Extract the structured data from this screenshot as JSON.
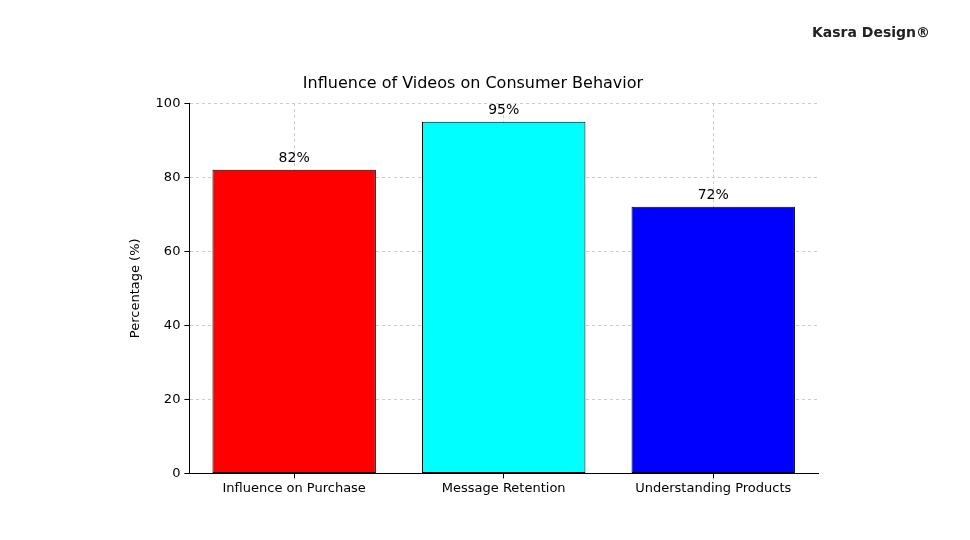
{
  "chart_data": {
    "type": "bar",
    "title": "Influence of Videos on Consumer Behavior",
    "y_label": "Percentage (%)",
    "categories": [
      "Influence on Purchase",
      "Message Retention",
      "Understanding Products"
    ],
    "values": [
      82,
      95,
      72
    ],
    "value_labels": [
      "82%",
      "95%",
      "72%"
    ],
    "colors": [
      "#ff0000",
      "#00ffff",
      "#0000ff"
    ],
    "ylim": [
      0,
      100
    ],
    "yticks": [
      0,
      20,
      40,
      60,
      80,
      100
    ],
    "grid": true,
    "data_labels": true,
    "annotations": [
      "Kasra Design®"
    ]
  }
}
